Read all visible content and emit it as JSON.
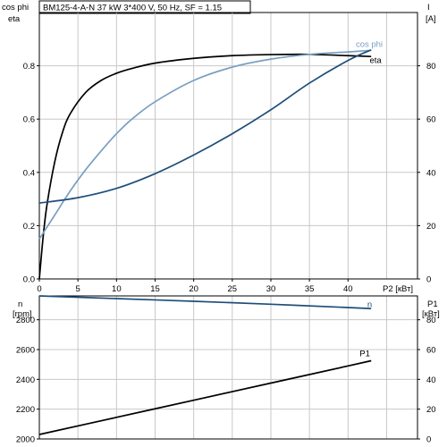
{
  "title": "BM125-4-A-N   37 kW   3*400 V, 50 Hz, SF = 1.15",
  "colors": {
    "eta": "#000000",
    "cosphi": "#7a9fc1",
    "current": "#1f4e79",
    "n": "#1f4e79",
    "p1": "#000000",
    "grid": "#c8c8c8"
  },
  "chart_data": [
    {
      "type": "line",
      "x_axis": {
        "label": "P2 [кВт]",
        "ticks": [
          "0",
          "5",
          "10",
          "15",
          "20",
          "25",
          "30",
          "35",
          "40"
        ],
        "range": [
          0,
          49
        ]
      },
      "left_axis": {
        "label_line1": "cos phi",
        "label_line2": "eta",
        "ticks": [
          "0.0",
          "0.2",
          "0.4",
          "0.6",
          "0.8"
        ],
        "range": [
          0,
          1.0
        ]
      },
      "right_axis": {
        "label_line1": "I",
        "label_line2": "[A]",
        "ticks": [
          "0",
          "20",
          "40",
          "60",
          "80"
        ],
        "range": [
          0,
          100
        ]
      },
      "grid": true,
      "series": [
        {
          "name": "eta",
          "axis": "left",
          "color_key": "eta",
          "x": [
            0,
            0.5,
            1,
            2,
            3,
            4,
            6,
            8,
            10,
            12,
            15,
            20,
            25,
            30,
            35,
            40,
            43
          ],
          "y": [
            0,
            0.16,
            0.28,
            0.44,
            0.55,
            0.62,
            0.7,
            0.745,
            0.772,
            0.79,
            0.81,
            0.828,
            0.838,
            0.842,
            0.843,
            0.838,
            0.835
          ]
        },
        {
          "name": "cos phi",
          "axis": "left",
          "color_key": "cosphi",
          "x": [
            0,
            2,
            4,
            6,
            8,
            10,
            12,
            15,
            20,
            25,
            30,
            35,
            40,
            43
          ],
          "y": [
            0.15,
            0.24,
            0.33,
            0.41,
            0.48,
            0.545,
            0.6,
            0.665,
            0.745,
            0.795,
            0.825,
            0.843,
            0.852,
            0.858
          ]
        },
        {
          "name": "I",
          "axis": "right",
          "color_key": "current",
          "x": [
            0,
            5,
            10,
            15,
            20,
            25,
            30,
            35,
            40,
            43
          ],
          "y": [
            28.5,
            30.5,
            34,
            39.5,
            46.5,
            54.5,
            63.5,
            73.5,
            82,
            86
          ]
        }
      ],
      "labels": [
        {
          "text": "cos phi",
          "color_key": "cosphi",
          "x": 41,
          "y": 0.87,
          "axis": "left"
        },
        {
          "text": "eta",
          "color_key": "eta",
          "x": 42.8,
          "y": 0.81,
          "axis": "left"
        }
      ]
    },
    {
      "type": "line",
      "x_axis": {
        "ticks": [],
        "range": [
          0,
          49
        ]
      },
      "left_axis": {
        "label_line1": "n",
        "label_line2": "[rpm]",
        "ticks": [
          "2000",
          "2200",
          "2400",
          "2600",
          "2800"
        ],
        "range": [
          2000,
          2960
        ]
      },
      "right_axis": {
        "label_line1": "P1",
        "label_line2": "[кВт]",
        "ticks": [
          "0",
          "20",
          "40",
          "60",
          "80"
        ],
        "range": [
          0,
          96
        ]
      },
      "grid": true,
      "series": [
        {
          "name": "n",
          "axis": "left",
          "color_key": "n",
          "x": [
            0,
            10,
            20,
            30,
            40,
            43
          ],
          "y": [
            2960,
            2942,
            2924,
            2904,
            2882,
            2875
          ]
        },
        {
          "name": "P1",
          "axis": "right",
          "color_key": "p1",
          "x": [
            0,
            10,
            20,
            30,
            40,
            43
          ],
          "y": [
            3,
            14.5,
            26,
            37.5,
            49,
            52.5
          ]
        }
      ],
      "labels": [
        {
          "text": "n",
          "color_key": "n",
          "x": 42.5,
          "y": 2885,
          "axis": "left"
        },
        {
          "text": "P1",
          "color_key": "p1",
          "x": 41.5,
          "y": 55.5,
          "axis": "right"
        }
      ]
    }
  ]
}
